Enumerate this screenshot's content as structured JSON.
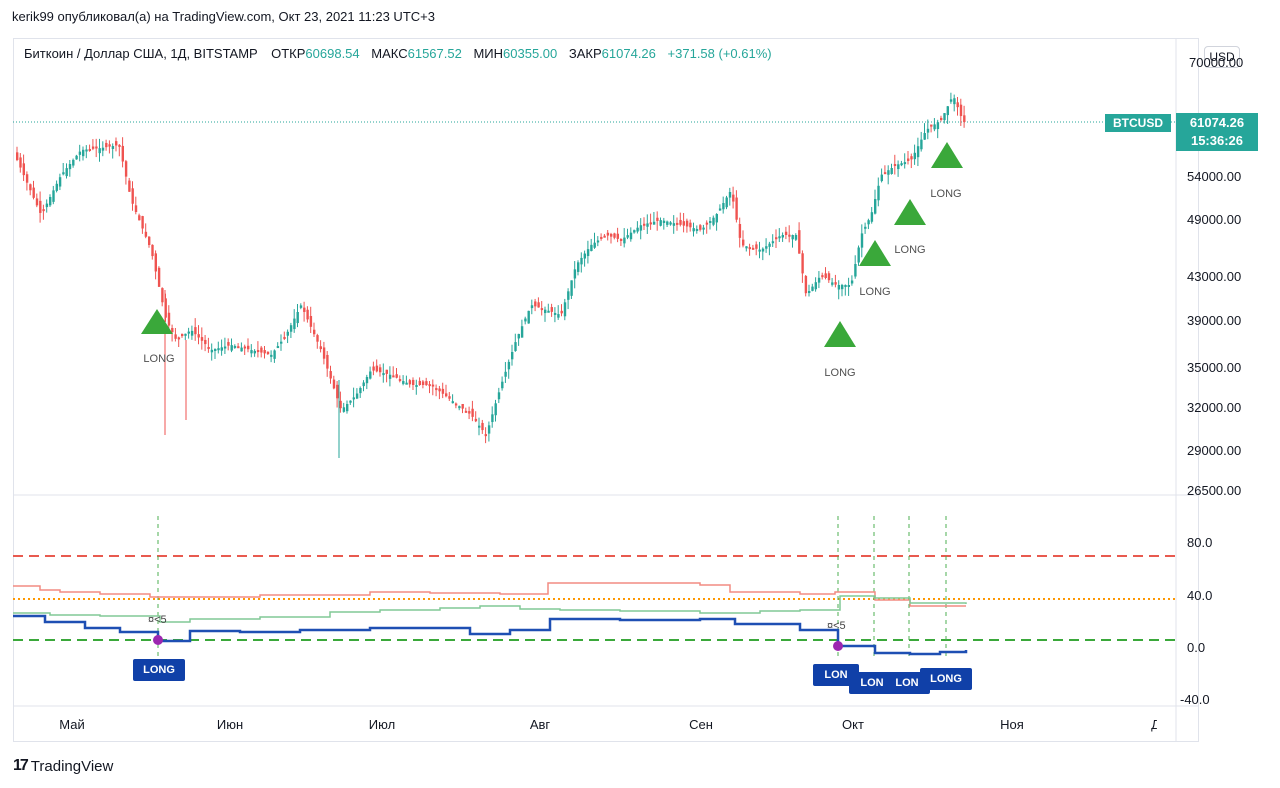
{
  "top_title": "kerik99 опубликовал(а) на TradingView.com, Окт 23, 2021 11:23 UTC+3",
  "symbol_header": {
    "symbol": "Биткоин / Доллар США, 1Д, BITSTAMP",
    "open_label": "ОТКР",
    "open_value": "60698.54",
    "high_label": "МАКС",
    "high_value": "61567.52",
    "low_label": "МИН",
    "low_value": "60355.00",
    "close_label": "ЗАКР",
    "close_value": "61074.26",
    "change": "+371.58 (+0.61%)"
  },
  "currency_button": "USD",
  "price_tag": {
    "ticker": "BTCUSD",
    "price": "61074.26",
    "countdown": "15:36:26"
  },
  "price_axis": [
    "70000.00",
    "54000.00",
    "49000.00",
    "43000.00",
    "39000.00",
    "35000.00",
    "32000.00",
    "29000.00",
    "26500.00"
  ],
  "indicator_axis": [
    "80.0",
    "40.0",
    "0.0",
    "-40.0"
  ],
  "months": [
    "Май",
    "Июн",
    "Июл",
    "Авг",
    "Сен",
    "Окт",
    "Ноя",
    "Дек"
  ],
  "signals": {
    "long_text": "LONG",
    "long_cut": "LON",
    "cross_text": "¤<5"
  },
  "colors": {
    "up": "#26a69a",
    "down": "#ef5350",
    "signal": "#3aa83a",
    "marker_bg": "#1040a8",
    "accent": "#26a69a"
  },
  "brand": "TradingView"
}
